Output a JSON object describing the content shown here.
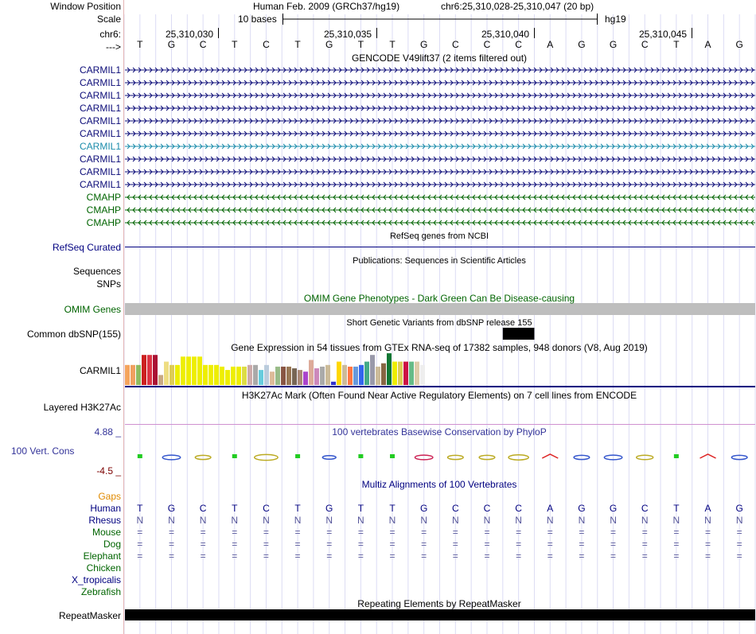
{
  "header": {
    "window_position_label": "Window Position",
    "assembly_title": "Human Feb. 2009 (GRCh37/hg19)",
    "position_text": "chr6:25,310,028-25,310,047 (20 bp)",
    "scale_label": "Scale",
    "scale_text": "10 bases",
    "assembly_short": "hg19",
    "chrom_label": "chr6:",
    "strand_label": "--->",
    "coord_ticks": [
      "25,310,030",
      "25,310,035",
      "25,310,040",
      "25,310,045"
    ]
  },
  "bases": [
    "T",
    "G",
    "C",
    "T",
    "C",
    "T",
    "G",
    "T",
    "T",
    "G",
    "C",
    "C",
    "C",
    "A",
    "G",
    "G",
    "C",
    "T",
    "A",
    "G"
  ],
  "gencode": {
    "title": "GENCODE V49lift37 (2 items filtered out)",
    "transcripts": [
      {
        "name": "CARMIL1",
        "strand": "+",
        "color": "#0c0c78"
      },
      {
        "name": "CARMIL1",
        "strand": "+",
        "color": "#0c0c78"
      },
      {
        "name": "CARMIL1",
        "strand": "+",
        "color": "#0c0c78"
      },
      {
        "name": "CARMIL1",
        "strand": "+",
        "color": "#0c0c78"
      },
      {
        "name": "CARMIL1",
        "strand": "+",
        "color": "#0c0c78"
      },
      {
        "name": "CARMIL1",
        "strand": "+",
        "color": "#0c0c78"
      },
      {
        "name": "CARMIL1",
        "strand": "+",
        "color": "#1b8cab"
      },
      {
        "name": "CARMIL1",
        "strand": "+",
        "color": "#0c0c78"
      },
      {
        "name": "CARMIL1",
        "strand": "+",
        "color": "#0c0c78"
      },
      {
        "name": "CARMIL1",
        "strand": "+",
        "color": "#0c0c78"
      },
      {
        "name": "CMAHP",
        "strand": "-",
        "color": "#006400"
      },
      {
        "name": "CMAHP",
        "strand": "-",
        "color": "#006400"
      },
      {
        "name": "CMAHP",
        "strand": "-",
        "color": "#006400"
      }
    ]
  },
  "refseq": {
    "title": "RefSeq genes from NCBI",
    "label": "RefSeq Curated"
  },
  "publications": {
    "title": "Publications: Sequences in Scientific Articles",
    "label_sequences": "Sequences",
    "label_snps": "SNPs"
  },
  "omim": {
    "title": "OMIM Gene Phenotypes - Dark Green Can Be Disease-causing",
    "label": "OMIM Genes"
  },
  "dbsnp": {
    "title": "Short Genetic Variants from dbSNP release 155",
    "label": "Common dbSNP(155)"
  },
  "gtex": {
    "title": "Gene Expression in 54 tissues from GTEx RNA-seq of 17382 samples, 948 donors (V8, Aug 2019)",
    "label": "CARMIL1",
    "levels": [
      0.6,
      0.6,
      0.6,
      0.9,
      0.9,
      0.9,
      0.3,
      0.7,
      0.6,
      0.6,
      0.85,
      0.85,
      0.85,
      0.85,
      0.6,
      0.6,
      0.6,
      0.55,
      0.45,
      0.55,
      0.55,
      0.55,
      0.6,
      0.6,
      0.45,
      0.6,
      0.4,
      0.55,
      0.55,
      0.55,
      0.5,
      0.45,
      0.4,
      0.75,
      0.5,
      0.55,
      0.6,
      0.1,
      0.7,
      0.6,
      0.55,
      0.55,
      0.6,
      0.7,
      0.9,
      0.55,
      0.65,
      0.95,
      0.7,
      0.7,
      0.7,
      0.7,
      0.7,
      0.6
    ],
    "colors": [
      "#f5a45d",
      "#f0a060",
      "#8fbc62",
      "#cc2020",
      "#dd3344",
      "#aa1133",
      "#c8a882",
      "#eedd82",
      "#ddcc55",
      "#eeee00",
      "#eeee00",
      "#eeee00",
      "#eeee00",
      "#eeee00",
      "#eeee00",
      "#eeee00",
      "#eeee00",
      "#eeee00",
      "#eeee00",
      "#eeee00",
      "#eeee00",
      "#dddd44",
      "#ccaaaa",
      "#a9a9a9",
      "#66ccdd",
      "#bbccdd",
      "#ddbb99",
      "#99bb88",
      "#885544",
      "#997755",
      "#776655",
      "#aa8877",
      "#aa44cc",
      "#ddaa99",
      "#cc88bb",
      "#aaaaaa",
      "#ccbb99",
      "#3333cc",
      "#ffd700",
      "#ccbb99",
      "#ff7744",
      "#6699dd",
      "#3366ee",
      "#44aa88",
      "#9999aa",
      "#ccbb99",
      "#886644",
      "#117733",
      "#eeee00",
      "#ddcc55",
      "#cc1144",
      "#66bb88",
      "#ddccaa",
      "#eeeeee"
    ]
  },
  "h3k27ac": {
    "title": "H3K27Ac Mark (Often Found Near Active Regulatory Elements) on 7 cell lines from ENCODE",
    "label": "Layered H3K27Ac"
  },
  "conservation": {
    "title": "100 vertebrates Basewise Conservation by PhyloP",
    "label": "100 Vert. Cons",
    "ymax": "4.88 _",
    "ymin": "-4.5 _",
    "logo_colors": [
      "#22cc22",
      "#3355cc",
      "#bbaa22",
      "#22cc22",
      "#bbaa22",
      "#22cc22",
      "#3355cc",
      "#22cc22",
      "#22cc22",
      "#cc2255",
      "#bbaa22",
      "#bbaa22",
      "#bbaa22",
      "#dd2222",
      "#3355cc",
      "#3355cc",
      "#bbaa22",
      "#22cc22",
      "#dd2222",
      "#3355cc"
    ],
    "heights": [
      0.25,
      0.3,
      0.2,
      0.25,
      0.55,
      0.1,
      0.1,
      0.1,
      0.3,
      0.3,
      0.2,
      0.2,
      0.4,
      0.3,
      0.2,
      0.3,
      0.25,
      0.25,
      0.2,
      0.2
    ]
  },
  "multiz": {
    "title": "Multiz Alignments of 100 Vertebrates",
    "species": [
      {
        "name": "Gaps",
        "color": "#e08a00",
        "row": []
      },
      {
        "name": "Human",
        "color": "#000080",
        "row": [
          "T",
          "G",
          "C",
          "T",
          "C",
          "T",
          "G",
          "T",
          "T",
          "G",
          "C",
          "C",
          "C",
          "A",
          "G",
          "G",
          "C",
          "T",
          "A",
          "G"
        ]
      },
      {
        "name": "Rhesus",
        "color": "#000080",
        "row": [
          "N",
          "N",
          "N",
          "N",
          "N",
          "N",
          "N",
          "N",
          "N",
          "N",
          "N",
          "N",
          "N",
          "N",
          "N",
          "N",
          "N",
          "N",
          "N",
          "N"
        ]
      },
      {
        "name": "Mouse",
        "color": "#006400",
        "row": [
          "=",
          "=",
          "=",
          "=",
          "=",
          "=",
          "=",
          "=",
          "=",
          "=",
          "=",
          "=",
          "=",
          "=",
          "=",
          "=",
          "=",
          "=",
          "=",
          "="
        ]
      },
      {
        "name": "Dog",
        "color": "#006400",
        "row": [
          "=",
          "=",
          "=",
          "=",
          "=",
          "=",
          "=",
          "=",
          "=",
          "=",
          "=",
          "=",
          "=",
          "=",
          "=",
          "=",
          "=",
          "=",
          "=",
          "="
        ]
      },
      {
        "name": "Elephant",
        "color": "#006400",
        "row": [
          "=",
          "=",
          "=",
          "=",
          "=",
          "=",
          "=",
          "=",
          "=",
          "=",
          "=",
          "=",
          "=",
          "=",
          "=",
          "=",
          "=",
          "=",
          "=",
          "="
        ]
      },
      {
        "name": "Chicken",
        "color": "#006400",
        "row": []
      },
      {
        "name": "X_tropicalis",
        "color": "#000080",
        "row": []
      },
      {
        "name": "Zebrafish",
        "color": "#006400",
        "row": []
      }
    ]
  },
  "repeatmasker": {
    "title": "Repeating Elements by RepeatMasker",
    "label": "RepeatMasker"
  }
}
